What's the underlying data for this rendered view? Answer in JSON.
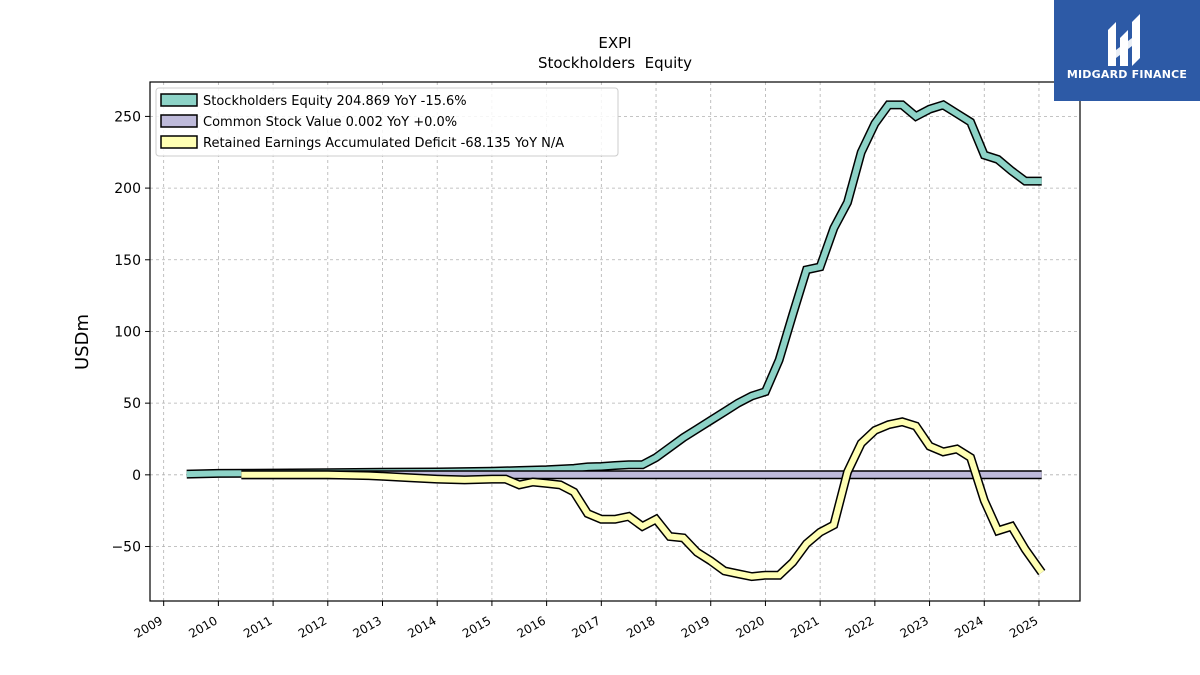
{
  "chart_data": {
    "type": "line",
    "title": "EXPI",
    "subtitle": "Stockholders  Equity",
    "ylabel": "USDm",
    "xlabel": "",
    "xlim": [
      2008.75,
      2025.75
    ],
    "ylim": [
      -88,
      274
    ],
    "yticks": [
      -50,
      0,
      50,
      100,
      150,
      200,
      250
    ],
    "ytick_labels": [
      "−50",
      "0",
      "50",
      "100",
      "150",
      "200",
      "250"
    ],
    "xticks": [
      2009,
      2010,
      2011,
      2012,
      2013,
      2014,
      2015,
      2016,
      2017,
      2018,
      2019,
      2020,
      2021,
      2022,
      2023,
      2024,
      2025
    ],
    "xtick_labels": [
      "2009",
      "2010",
      "2011",
      "2012",
      "2013",
      "2014",
      "2015",
      "2016",
      "2017",
      "2018",
      "2019",
      "2020",
      "2021",
      "2022",
      "2023",
      "2024",
      "2025"
    ],
    "grid": true,
    "legend_position": "top-left",
    "series": [
      {
        "name": "Stockholders Equity  204.869 YoY -15.6%",
        "color": "#8dd3c7",
        "x": [
          2009.42,
          2010.0,
          2011.0,
          2012.0,
          2013.0,
          2014.0,
          2015.0,
          2015.5,
          2016.0,
          2016.5,
          2016.75,
          2017.0,
          2017.25,
          2017.5,
          2017.75,
          2018.0,
          2018.25,
          2018.5,
          2018.75,
          2019.0,
          2019.25,
          2019.5,
          2019.75,
          2020.0,
          2020.25,
          2020.5,
          2020.75,
          2021.0,
          2021.25,
          2021.5,
          2021.75,
          2022.0,
          2022.25,
          2022.5,
          2022.75,
          2023.0,
          2023.25,
          2023.5,
          2023.75,
          2024.0,
          2024.25,
          2024.5,
          2024.75,
          2025.05
        ],
        "y": [
          0.5,
          1.0,
          1.2,
          1.5,
          1.8,
          2.0,
          2.5,
          3.0,
          3.5,
          4.5,
          5.5,
          5.8,
          6.5,
          7.0,
          7.0,
          12.0,
          19.0,
          26.0,
          32.0,
          38.0,
          44.0,
          50.0,
          55.0,
          58.0,
          80.0,
          112.0,
          143.0,
          145.0,
          172.0,
          190.0,
          225.0,
          245.0,
          258.0,
          258.0,
          250.0,
          255.0,
          258.0,
          252.0,
          246.0,
          223.0,
          220.0,
          212.0,
          204.869,
          204.869
        ]
      },
      {
        "name": "Common Stock Value  0.002 YoY +0.0%",
        "color": "#bebada",
        "x": [
          2010.42,
          2011.0,
          2012.0,
          2013.0,
          2014.0,
          2015.0,
          2016.0,
          2017.0,
          2018.0,
          2019.0,
          2020.0,
          2021.0,
          2022.0,
          2023.0,
          2024.0,
          2025.05
        ],
        "y": [
          0.002,
          0.002,
          0.002,
          0.002,
          0.002,
          0.002,
          0.002,
          0.002,
          0.002,
          0.002,
          0.002,
          0.002,
          0.002,
          0.002,
          0.002,
          0.002
        ]
      },
      {
        "name": "Retained Earnings Accumulated Deficit  -68.135 YoY N/A",
        "color": "#ffffb3",
        "x": [
          2010.42,
          2011.0,
          2012.0,
          2012.75,
          2013.0,
          2013.5,
          2014.0,
          2014.5,
          2015.0,
          2015.25,
          2015.5,
          2015.75,
          2016.0,
          2016.25,
          2016.5,
          2016.75,
          2017.0,
          2017.25,
          2017.5,
          2017.75,
          2018.0,
          2018.25,
          2018.5,
          2018.75,
          2019.0,
          2019.25,
          2019.5,
          2019.75,
          2020.0,
          2020.25,
          2020.5,
          2020.75,
          2021.0,
          2021.25,
          2021.5,
          2021.75,
          2022.0,
          2022.25,
          2022.5,
          2022.75,
          2023.0,
          2023.25,
          2023.5,
          2023.75,
          2024.0,
          2024.25,
          2024.5,
          2024.75,
          2025.05
        ],
        "y": [
          0.0,
          0.0,
          0.0,
          -0.5,
          -1.0,
          -2.0,
          -3.0,
          -3.5,
          -3.0,
          -3.0,
          -7.0,
          -5.0,
          -6.0,
          -7.0,
          -12.0,
          -27.0,
          -31.0,
          -31.0,
          -29.0,
          -36.0,
          -31.0,
          -43.0,
          -44.0,
          -54.0,
          -60.0,
          -67.0,
          -69.0,
          -71.0,
          -70.0,
          -70.0,
          -61.0,
          -48.0,
          -40.0,
          -35.0,
          2.0,
          22.0,
          31.0,
          35.0,
          37.0,
          34.0,
          20.0,
          16.0,
          18.0,
          12.0,
          -18.0,
          -39.0,
          -36.0,
          -52.0,
          -68.135
        ]
      }
    ]
  },
  "logo": {
    "text": "MIDGARD FINANCE",
    "bg_color": "#2d5aa6"
  }
}
